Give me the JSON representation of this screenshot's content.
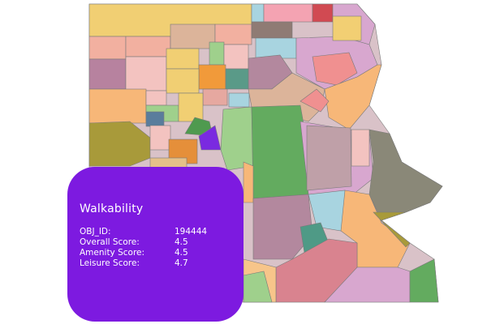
{
  "popup": {
    "title": "Walkability",
    "fields": [
      {
        "label": "OBJ_ID:",
        "value": "194444"
      },
      {
        "label": "Overall Score:",
        "value": "4.5"
      },
      {
        "label": "Amenity Score:",
        "value": "4.5"
      },
      {
        "label": "Leisure Score:",
        "value": "4.7"
      }
    ]
  }
}
